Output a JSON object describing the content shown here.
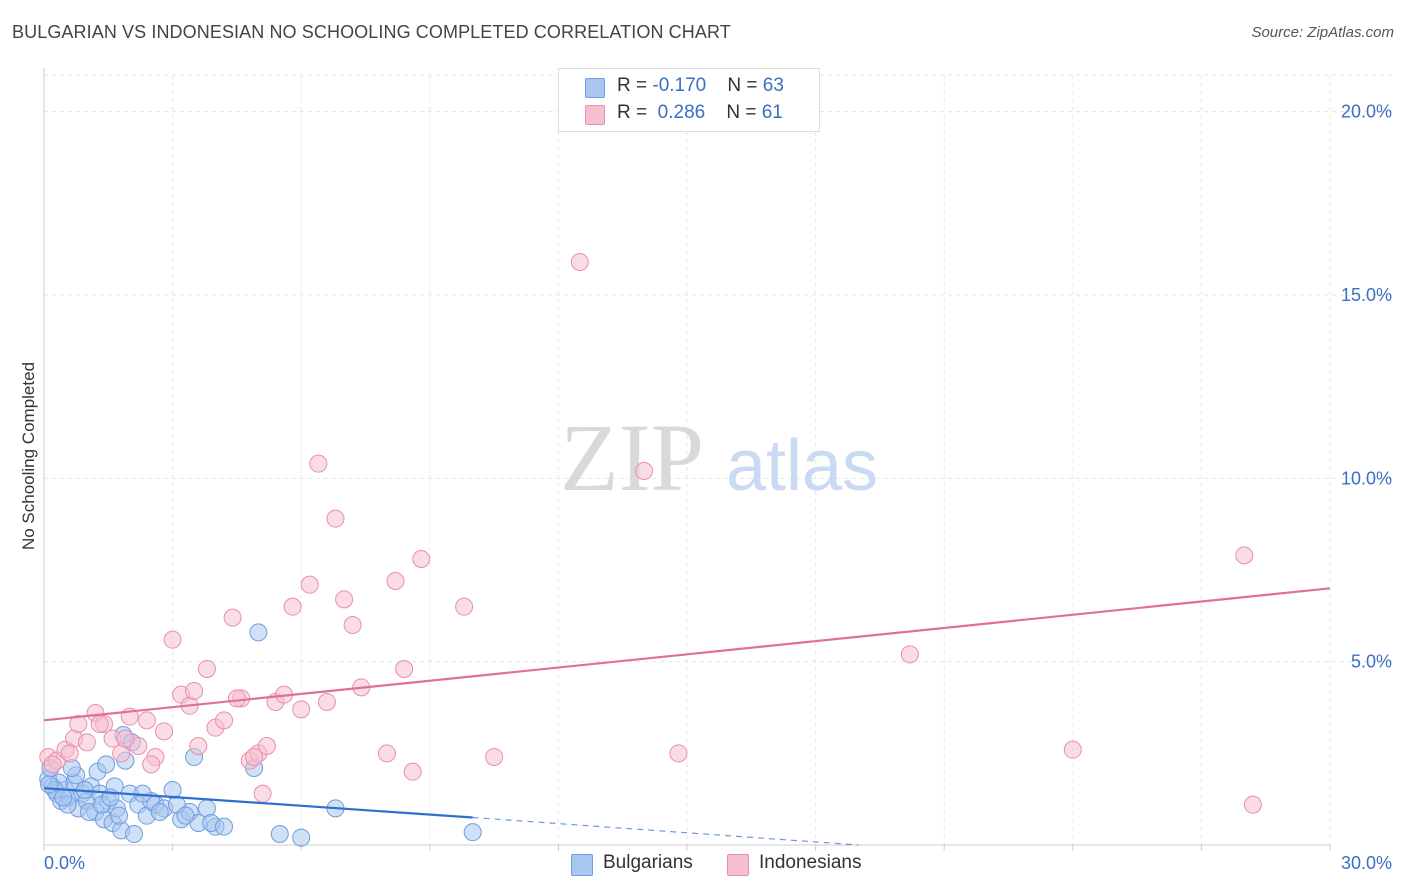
{
  "title": "BULGARIAN VS INDONESIAN NO SCHOOLING COMPLETED CORRELATION CHART",
  "source": "Source: ZipAtlas.com",
  "watermark": {
    "zip": "ZIP",
    "atlas": "atlas"
  },
  "legend_top": [
    {
      "r_label": "R = ",
      "r_value": "-0.170",
      "n_label": "N = ",
      "n_value": "63"
    },
    {
      "r_label": "R = ",
      "r_value": " 0.286",
      "n_label": "N = ",
      "n_value": "61"
    }
  ],
  "colors": {
    "blue_fill": "#a9c7ef",
    "blue_stroke": "#6d9ee0",
    "blue_line": "#2f6fcf",
    "pink_fill": "#f5bfd0",
    "pink_stroke": "#e98fae",
    "pink_line": "#e0709a",
    "tick_label": "#3a6fc4",
    "grid": "#e6e6e6"
  },
  "chart_data": {
    "type": "scatter",
    "title": "BULGARIAN VS INDONESIAN NO SCHOOLING COMPLETED CORRELATION CHART",
    "xlabel": "",
    "ylabel": "No Schooling Completed",
    "xlim": [
      0,
      30
    ],
    "ylim": [
      0,
      21
    ],
    "x_tick_labels": [
      "0.0%",
      "30.0%"
    ],
    "y_ticks": [
      5,
      10,
      15,
      20
    ],
    "y_tick_labels": [
      "5.0%",
      "10.0%",
      "15.0%",
      "20.0%"
    ],
    "grid": true,
    "legend": [
      "Bulgarians",
      "Indonesians"
    ],
    "series": [
      {
        "name": "Bulgarians",
        "r": -0.17,
        "n": 63,
        "trend": {
          "x0": 0,
          "y0": 1.55,
          "x1": 10,
          "y1": 0.75,
          "dashed_to": 19,
          "dashed_y": 0.0
        },
        "points": [
          [
            0.1,
            1.8
          ],
          [
            0.2,
            1.6
          ],
          [
            0.3,
            1.4
          ],
          [
            0.15,
            2.1
          ],
          [
            0.4,
            1.2
          ],
          [
            0.5,
            1.5
          ],
          [
            0.6,
            1.3
          ],
          [
            0.7,
            1.7
          ],
          [
            0.8,
            1.0
          ],
          [
            0.9,
            1.4
          ],
          [
            1.0,
            1.2
          ],
          [
            1.1,
            1.6
          ],
          [
            1.2,
            0.9
          ],
          [
            1.3,
            1.4
          ],
          [
            1.4,
            0.7
          ],
          [
            1.5,
            1.2
          ],
          [
            1.6,
            0.6
          ],
          [
            1.7,
            1.0
          ],
          [
            1.8,
            0.4
          ],
          [
            1.9,
            2.3
          ],
          [
            2.0,
            1.4
          ],
          [
            2.2,
            1.1
          ],
          [
            2.4,
            0.8
          ],
          [
            2.6,
            1.1
          ],
          [
            2.8,
            1.0
          ],
          [
            3.0,
            1.5
          ],
          [
            3.2,
            0.7
          ],
          [
            3.4,
            0.9
          ],
          [
            3.6,
            0.6
          ],
          [
            3.8,
            1.0
          ],
          [
            4.0,
            0.5
          ],
          [
            0.35,
            1.7
          ],
          [
            0.55,
            1.1
          ],
          [
            0.75,
            1.9
          ],
          [
            0.95,
            1.5
          ],
          [
            1.25,
            2.0
          ],
          [
            1.45,
            2.2
          ],
          [
            1.65,
            1.6
          ],
          [
            1.85,
            3.0
          ],
          [
            2.1,
            0.3
          ],
          [
            2.5,
            1.2
          ],
          [
            2.7,
            0.9
          ],
          [
            3.1,
            1.1
          ],
          [
            3.3,
            0.8
          ],
          [
            3.5,
            2.4
          ],
          [
            3.9,
            0.6
          ],
          [
            4.2,
            0.5
          ],
          [
            4.9,
            2.1
          ],
          [
            5.0,
            5.8
          ],
          [
            5.5,
            0.3
          ],
          [
            6.0,
            0.2
          ],
          [
            6.8,
            1.0
          ],
          [
            10.0,
            0.35
          ],
          [
            0.25,
            1.5
          ],
          [
            0.45,
            1.3
          ],
          [
            0.65,
            2.1
          ],
          [
            1.05,
            0.9
          ],
          [
            1.35,
            1.1
          ],
          [
            1.55,
            1.3
          ],
          [
            1.75,
            0.8
          ],
          [
            2.05,
            2.8
          ],
          [
            2.3,
            1.4
          ],
          [
            0.12,
            1.65
          ]
        ]
      },
      {
        "name": "Indonesians",
        "r": 0.286,
        "n": 61,
        "trend": {
          "x0": 0,
          "y0": 3.4,
          "x1": 30,
          "y1": 7.0
        },
        "points": [
          [
            0.1,
            2.4
          ],
          [
            0.3,
            2.3
          ],
          [
            0.5,
            2.6
          ],
          [
            0.7,
            2.9
          ],
          [
            0.8,
            3.3
          ],
          [
            1.0,
            2.8
          ],
          [
            1.2,
            3.6
          ],
          [
            1.4,
            3.3
          ],
          [
            1.6,
            2.9
          ],
          [
            1.8,
            2.5
          ],
          [
            2.0,
            3.5
          ],
          [
            2.2,
            2.7
          ],
          [
            2.4,
            3.4
          ],
          [
            2.6,
            2.4
          ],
          [
            2.8,
            3.1
          ],
          [
            3.0,
            5.6
          ],
          [
            3.2,
            4.1
          ],
          [
            3.4,
            3.8
          ],
          [
            3.6,
            2.7
          ],
          [
            3.8,
            4.8
          ],
          [
            4.0,
            3.2
          ],
          [
            4.2,
            3.4
          ],
          [
            4.4,
            6.2
          ],
          [
            4.6,
            4.0
          ],
          [
            4.8,
            2.3
          ],
          [
            5.0,
            2.5
          ],
          [
            5.2,
            2.7
          ],
          [
            5.4,
            3.9
          ],
          [
            5.6,
            4.1
          ],
          [
            5.8,
            6.5
          ],
          [
            6.0,
            3.7
          ],
          [
            6.2,
            7.1
          ],
          [
            6.4,
            10.4
          ],
          [
            6.6,
            3.9
          ],
          [
            6.8,
            8.9
          ],
          [
            7.0,
            6.7
          ],
          [
            7.2,
            6.0
          ],
          [
            7.4,
            4.3
          ],
          [
            8.0,
            2.5
          ],
          [
            8.2,
            7.2
          ],
          [
            8.4,
            4.8
          ],
          [
            8.6,
            2.0
          ],
          [
            8.8,
            7.8
          ],
          [
            9.8,
            6.5
          ],
          [
            10.5,
            2.4
          ],
          [
            12.5,
            15.9
          ],
          [
            14.0,
            10.2
          ],
          [
            14.8,
            2.5
          ],
          [
            20.2,
            5.2
          ],
          [
            24.0,
            2.6
          ],
          [
            28.0,
            7.9
          ],
          [
            28.2,
            1.1
          ],
          [
            0.2,
            2.2
          ],
          [
            0.6,
            2.5
          ],
          [
            1.3,
            3.3
          ],
          [
            1.9,
            2.9
          ],
          [
            2.5,
            2.2
          ],
          [
            3.5,
            4.2
          ],
          [
            4.5,
            4.0
          ],
          [
            5.1,
            1.4
          ],
          [
            4.9,
            2.4
          ]
        ]
      }
    ]
  },
  "legend_bottom": [
    {
      "label": "Bulgarians"
    },
    {
      "label": "Indonesians"
    }
  ]
}
